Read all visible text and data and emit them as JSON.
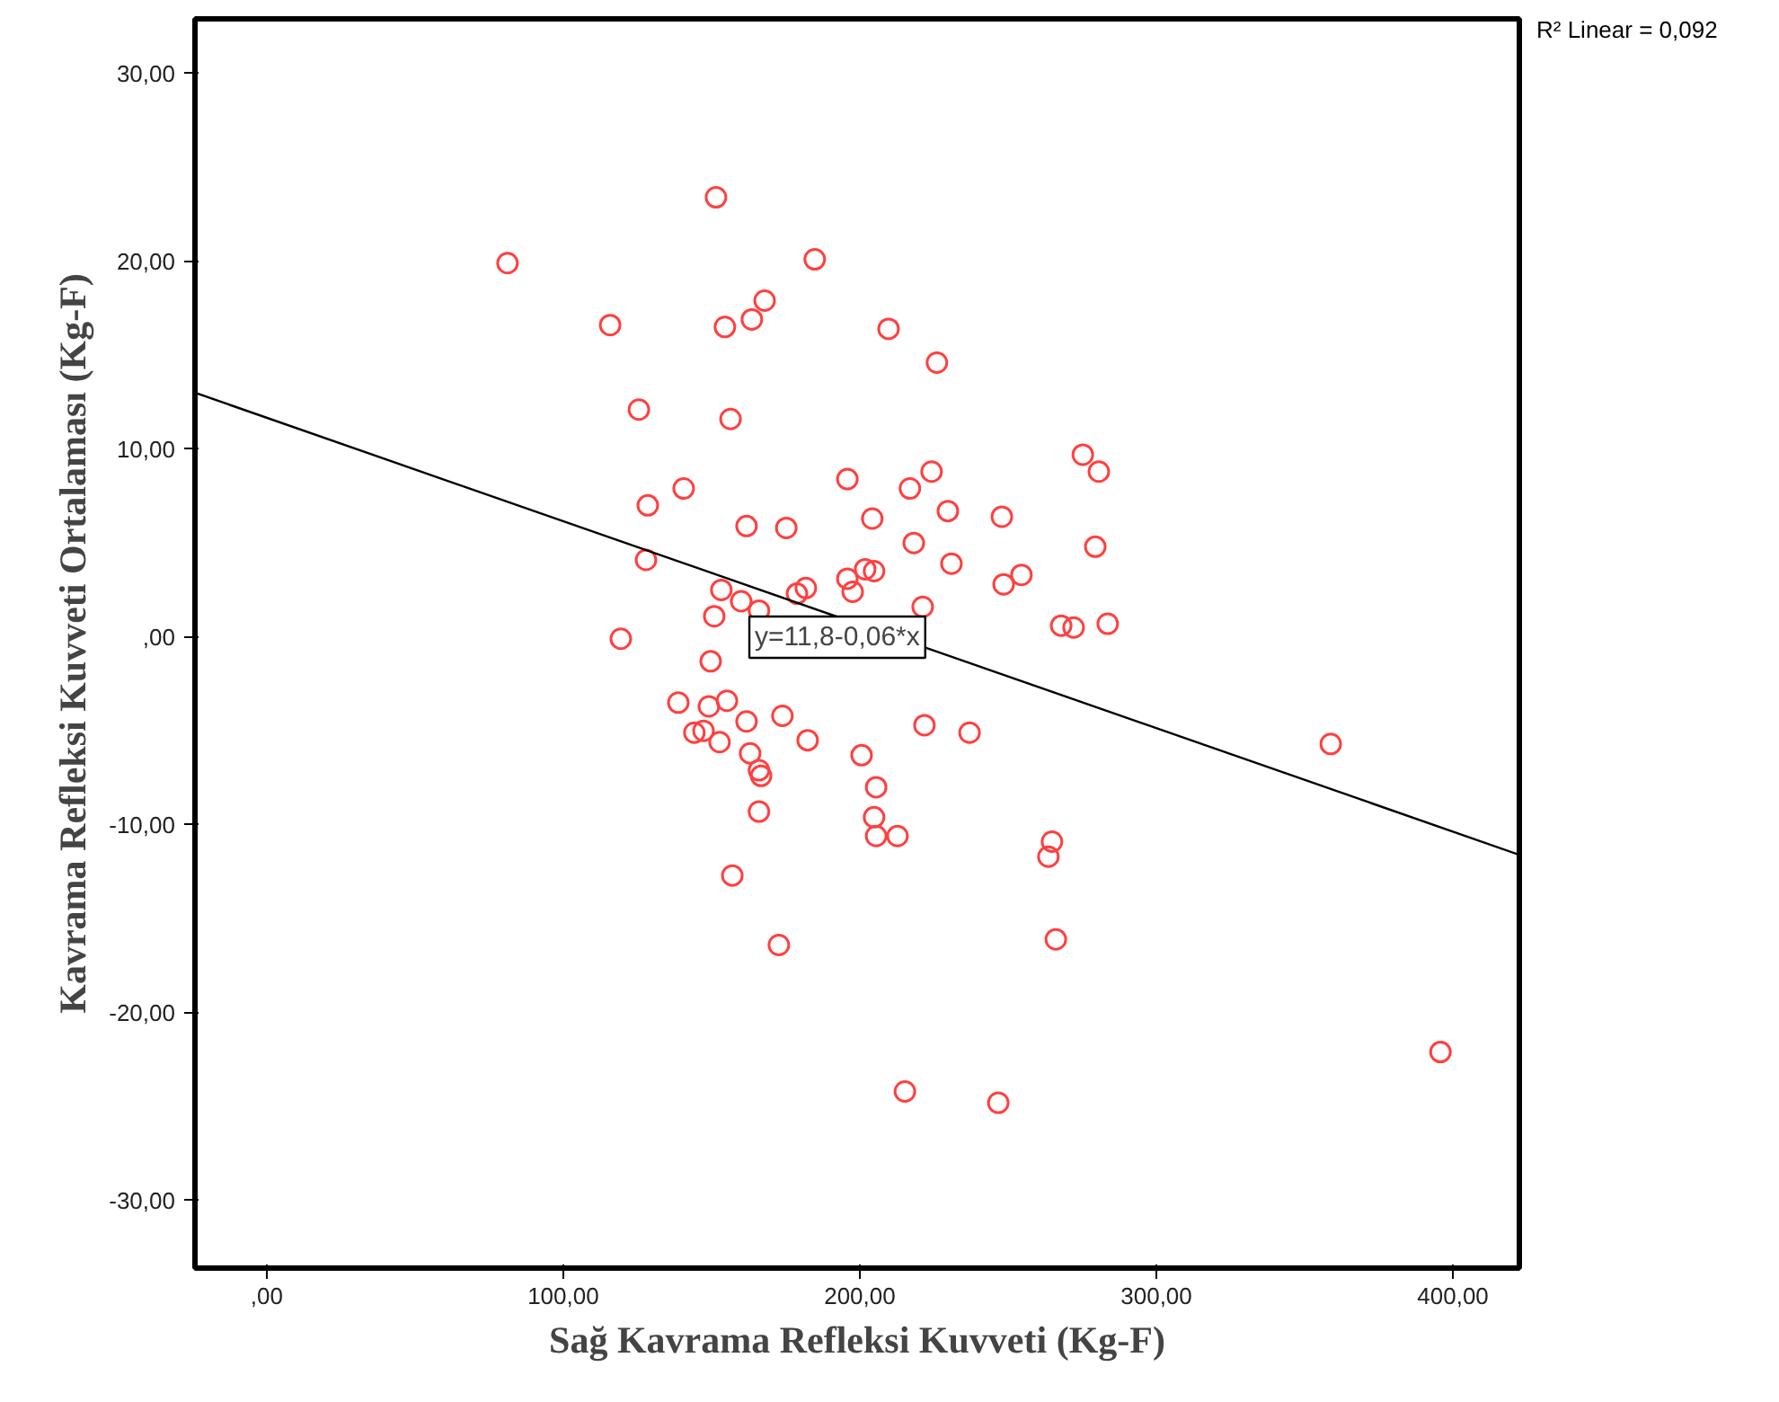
{
  "chart_data": {
    "type": "scatter",
    "xlabel": "Sağ Kavrama Refleksi Kuvveti (Kg-F)",
    "ylabel": "Kavrama Refleksi Kuvveti Ortalaması (Kg-F)",
    "xlim": [
      -24.2,
      422.4
    ],
    "ylim": [
      -33.6,
      32.9
    ],
    "xticks": [
      {
        "value": 0,
        "label": ",00"
      },
      {
        "value": 100,
        "label": "100,00"
      },
      {
        "value": 200,
        "label": "200,00"
      },
      {
        "value": 300,
        "label": "300,00"
      },
      {
        "value": 400,
        "label": "400,00"
      }
    ],
    "yticks": [
      {
        "value": -30,
        "label": "-30,00"
      },
      {
        "value": -20,
        "label": "-20,00"
      },
      {
        "value": -10,
        "label": "-10,00"
      },
      {
        "value": 0,
        "label": ",00"
      },
      {
        "value": 10,
        "label": "10,00"
      },
      {
        "value": 20,
        "label": "20,00"
      },
      {
        "value": 30,
        "label": "30,00"
      }
    ],
    "grid": false,
    "annotations": [
      "R² Linear = 0,092",
      "y=11,8-0,06*x"
    ],
    "series": [
      {
        "marker": "circle",
        "color": "#ff4040",
        "x": [
          81.2,
          115.8,
          151.5,
          154.5,
          163.6,
          167.9,
          184.8,
          209.7,
          226,
          125.5,
          156.4,
          128.5,
          140.6,
          161.8,
          175.2,
          195.8,
          204.2,
          216.9,
          224.2,
          229.7,
          247.9,
          275.2,
          280.6,
          279.4,
          218.2,
          230.9,
          248.5,
          254.5,
          267.9,
          272.1,
          283.6,
          221.2,
          195.8,
          197.6,
          201.8,
          204.8,
          178.8,
          181.8,
          153.3,
          160,
          166,
          150.9,
          119.4,
          127.9,
          149.7,
          138.8,
          149.1,
          155.2,
          161.8,
          173.9,
          144.2,
          147.3,
          152.7,
          182.4,
          163,
          166,
          166.7,
          166,
          157,
          172.7,
          200.6,
          205.5,
          204.8,
          205.5,
          212.7,
          221.8,
          237,
          264.8,
          263.6,
          266.1,
          215.2,
          246.7,
          358.8,
          395.8
        ],
        "values": [
          19.9,
          16.6,
          23.4,
          16.5,
          16.9,
          17.9,
          20.1,
          16.4,
          14.6,
          12.1,
          11.6,
          7.0,
          7.9,
          5.9,
          5.8,
          8.4,
          6.3,
          7.9,
          8.8,
          6.7,
          6.4,
          9.7,
          8.8,
          4.8,
          5.0,
          3.9,
          2.8,
          3.3,
          0.6,
          0.5,
          0.7,
          1.6,
          3.1,
          2.4,
          3.6,
          3.5,
          2.3,
          2.6,
          2.5,
          1.9,
          1.4,
          1.1,
          -0.1,
          4.1,
          -1.3,
          -3.5,
          -3.7,
          -3.4,
          -4.5,
          -4.2,
          -5.1,
          -5.0,
          -5.6,
          -5.5,
          -6.2,
          -7.1,
          -7.4,
          -9.3,
          -12.7,
          -16.4,
          -6.3,
          -8.0,
          -9.6,
          -10.6,
          -10.6,
          -4.7,
          -5.1,
          -10.9,
          -11.7,
          -16.1,
          -24.2,
          -24.8,
          -5.7,
          -22.1
        ]
      },
      {
        "type": "line",
        "color": "#000000",
        "x": [
          -24.2,
          422.4
        ],
        "values": [
          13.0,
          -11.6
        ]
      }
    ]
  }
}
